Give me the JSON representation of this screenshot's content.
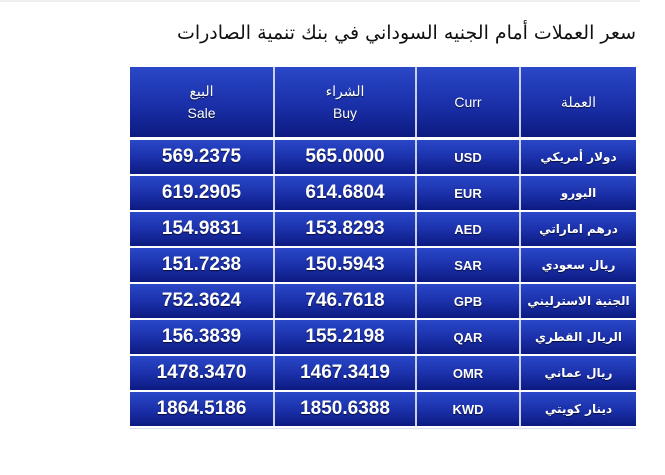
{
  "title": "سعر العملات أمام الجنيه السوداني في بنك تنمية الصادرات",
  "header": {
    "sale_ar": "البيع",
    "sale_en": "Sale",
    "buy_ar": "الشراء",
    "buy_en": "Buy",
    "curr": "Curr",
    "name": "العملة"
  },
  "rows": [
    {
      "sale": "569.2375",
      "buy": "565.0000",
      "code": "USD",
      "name": "دولار أمريكي"
    },
    {
      "sale": "619.2905",
      "buy": "614.6804",
      "code": "EUR",
      "name": "اليورو"
    },
    {
      "sale": "154.9831",
      "buy": "153.8293",
      "code": "AED",
      "name": "درهم اماراتي"
    },
    {
      "sale": "151.7238",
      "buy": "150.5943",
      "code": "SAR",
      "name": "ريال سعودي"
    },
    {
      "sale": "752.3624",
      "buy": "746.7618",
      "code": "GPB",
      "name": "الجنية الاسترليني"
    },
    {
      "sale": "156.3839",
      "buy": "155.2198",
      "code": "QAR",
      "name": "الريال القطري"
    },
    {
      "sale": "1478.3470",
      "buy": "1467.3419",
      "code": "OMR",
      "name": "ريال عماني"
    },
    {
      "sale": "1864.5186",
      "buy": "1850.6388",
      "code": "KWD",
      "name": "دينار كويتي"
    }
  ],
  "colors": {
    "header_blue": "#1a2fa8",
    "divider": "#c8d0ee"
  }
}
